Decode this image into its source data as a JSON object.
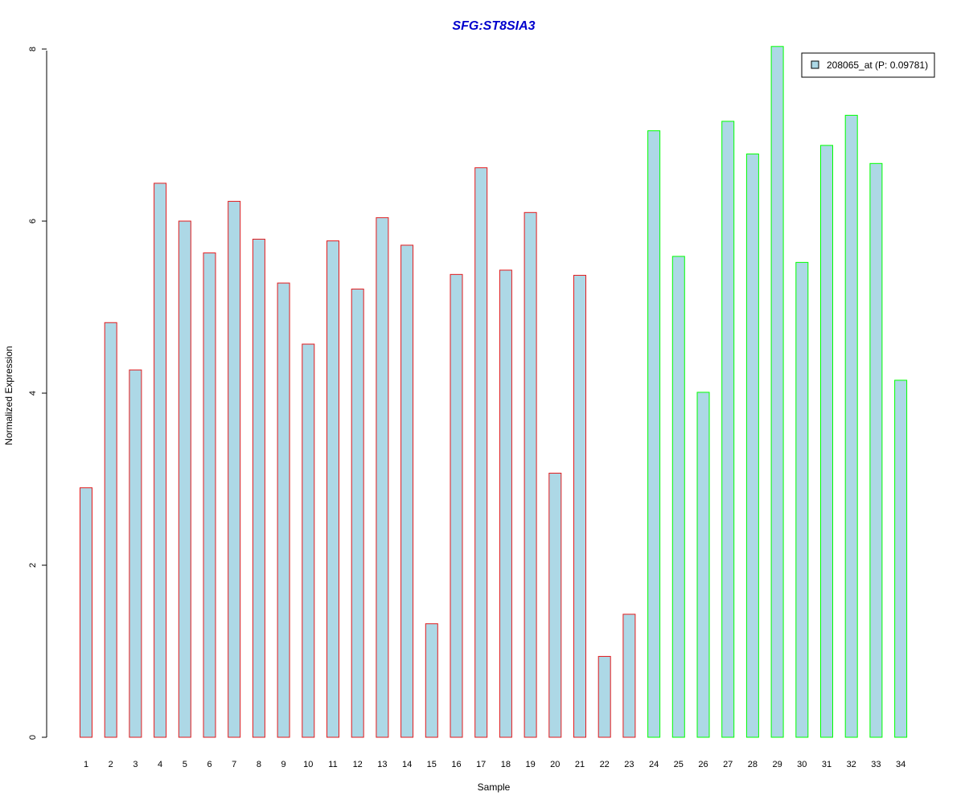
{
  "chart_data": {
    "type": "bar",
    "title": "SFG:ST8SIA3",
    "xlabel": "Sample",
    "ylabel": "Normalized Expression",
    "ylim": [
      0,
      8
    ],
    "yticks": [
      0,
      2,
      4,
      6,
      8
    ],
    "grid": false,
    "legend_position": "top-right",
    "categories": [
      "1",
      "2",
      "3",
      "4",
      "5",
      "6",
      "7",
      "8",
      "9",
      "10",
      "11",
      "12",
      "13",
      "14",
      "15",
      "16",
      "17",
      "18",
      "19",
      "20",
      "21",
      "22",
      "23",
      "24",
      "25",
      "26",
      "27",
      "28",
      "29",
      "30",
      "31",
      "32",
      "33",
      "34"
    ],
    "series": [
      {
        "name": "208065_at (P: 0.09781)",
        "values": [
          2.9,
          4.82,
          4.27,
          6.44,
          6.0,
          5.63,
          6.23,
          5.79,
          5.28,
          4.57,
          5.77,
          5.21,
          6.04,
          5.72,
          1.32,
          5.38,
          6.62,
          5.43,
          6.1,
          3.07,
          5.37,
          0.94,
          1.43,
          7.05,
          5.59,
          4.01,
          7.16,
          6.78,
          8.03,
          5.52,
          6.88,
          7.23,
          6.67,
          4.15
        ]
      }
    ],
    "group_sizes": [
      23,
      11
    ],
    "colors": {
      "fill": "#add8e6",
      "group1_border": "#e31a1c",
      "group2_border": "#00ff00",
      "title": "#0000cd"
    }
  }
}
